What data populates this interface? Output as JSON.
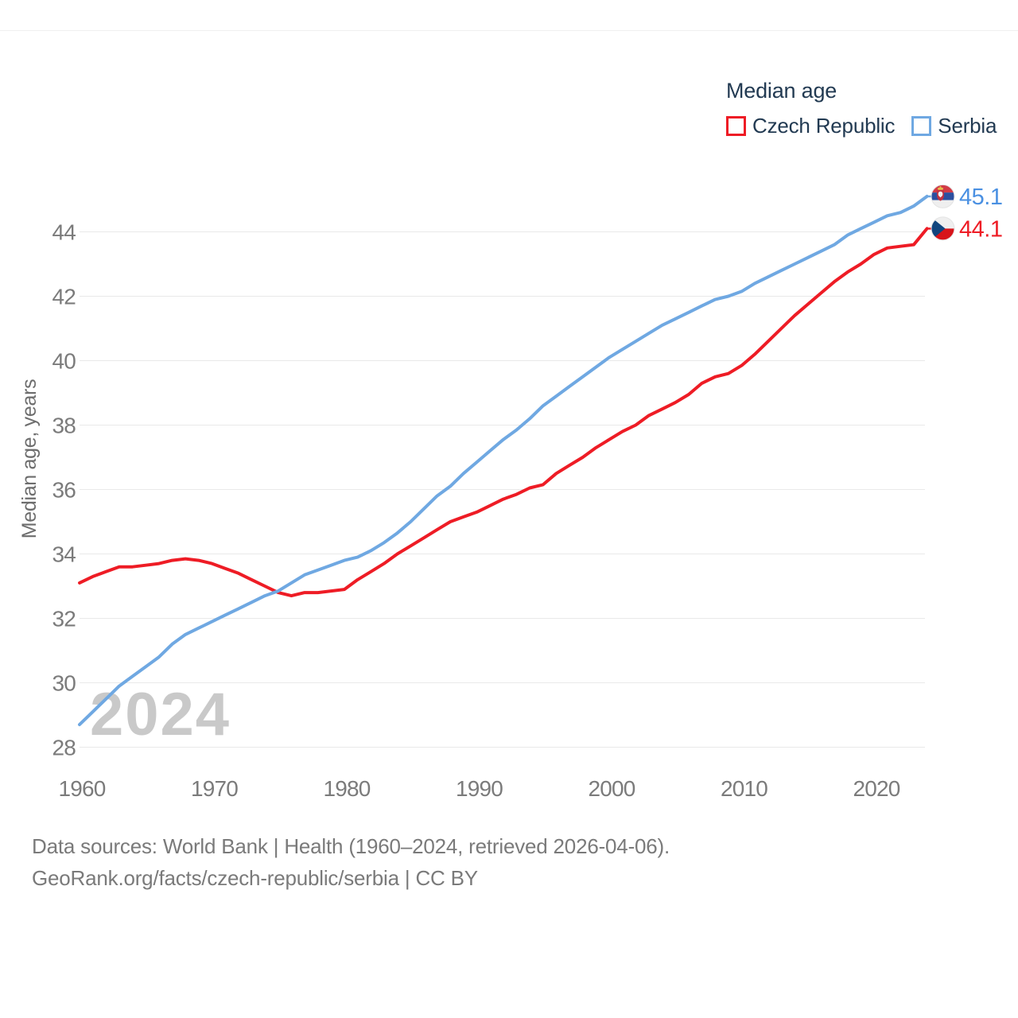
{
  "legend": {
    "title": "Median age",
    "items": [
      {
        "id": "czech-republic",
        "label": "Czech Republic",
        "color": "#ee1c25"
      },
      {
        "id": "serbia",
        "label": "Serbia",
        "color": "#6fa8e2"
      }
    ]
  },
  "watermark": "2024",
  "footer": {
    "line1": "Data sources: World Bank | Health (1960–2024, retrieved 2026-04-06).",
    "line2": "GeoRank.org/facts/czech-republic/serbia | CC BY"
  },
  "chart_data": {
    "type": "line",
    "title": "Median age",
    "xlabel": "",
    "ylabel": "Median age, years",
    "x_start": 1960,
    "x_step": 1,
    "x_end": 2024,
    "xticks": [
      1960,
      1970,
      1980,
      1990,
      2000,
      2010,
      2020
    ],
    "yticks": [
      28,
      30,
      32,
      34,
      36,
      38,
      40,
      42,
      44
    ],
    "ylim": [
      27.6,
      45.8
    ],
    "grid": "horizontal",
    "legend_position": "top-right",
    "series": [
      {
        "name": "Czech Republic",
        "flag": "czech-republic",
        "color": "#ee1c25",
        "label_color": "#ee1c25",
        "end_label": "44.1",
        "values": [
          33.1,
          33.3,
          33.45,
          33.6,
          33.6,
          33.65,
          33.7,
          33.8,
          33.85,
          33.8,
          33.7,
          33.55,
          33.4,
          33.2,
          33.0,
          32.8,
          32.7,
          32.8,
          32.8,
          32.85,
          32.9,
          33.2,
          33.45,
          33.7,
          34.0,
          34.25,
          34.5,
          34.75,
          35.0,
          35.15,
          35.3,
          35.5,
          35.7,
          35.85,
          36.05,
          36.15,
          36.5,
          36.75,
          37.0,
          37.3,
          37.55,
          37.8,
          38.0,
          38.3,
          38.5,
          38.7,
          38.95,
          39.3,
          39.5,
          39.6,
          39.85,
          40.2,
          40.6,
          41.0,
          41.4,
          41.75,
          42.1,
          42.45,
          42.75,
          43.0,
          43.3,
          43.5,
          43.55,
          43.6,
          44.1
        ]
      },
      {
        "name": "Serbia",
        "flag": "serbia",
        "color": "#6fa8e2",
        "label_color": "#4a90e2",
        "end_label": "45.1",
        "values": [
          28.7,
          29.1,
          29.5,
          29.9,
          30.2,
          30.5,
          30.8,
          31.2,
          31.5,
          31.7,
          31.9,
          32.1,
          32.3,
          32.5,
          32.7,
          32.85,
          33.1,
          33.35,
          33.5,
          33.65,
          33.8,
          33.9,
          34.1,
          34.35,
          34.65,
          35.0,
          35.4,
          35.8,
          36.1,
          36.5,
          36.85,
          37.2,
          37.55,
          37.85,
          38.2,
          38.6,
          38.9,
          39.2,
          39.5,
          39.8,
          40.1,
          40.35,
          40.6,
          40.85,
          41.1,
          41.3,
          41.5,
          41.7,
          41.9,
          42.0,
          42.15,
          42.4,
          42.6,
          42.8,
          43.0,
          43.2,
          43.4,
          43.6,
          43.9,
          44.1,
          44.3,
          44.5,
          44.6,
          44.8,
          45.1
        ]
      }
    ]
  }
}
